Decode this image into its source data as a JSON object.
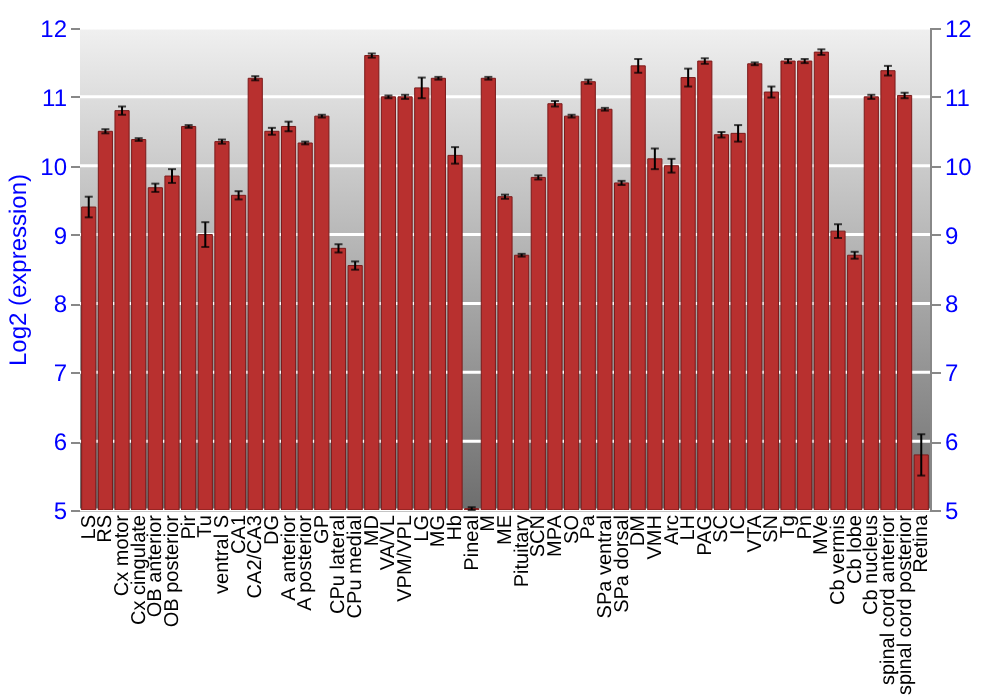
{
  "chart_data": {
    "type": "bar",
    "ylabel": "Log2 (expression)",
    "categories": [
      "LS",
      "RS",
      "Cx motor",
      "Cx cingulate",
      "OB anterior",
      "OB posterior",
      "Pir",
      "Tu",
      "ventral S",
      "CA1",
      "CA2/CA3",
      "DG",
      "A anterior",
      "A posterior",
      "GP",
      "CPu lateral",
      "CPu medial",
      "MD",
      "VA/VL",
      "VPM/VPL",
      "LG",
      "MG",
      "Hb",
      "Pineal",
      "M",
      "ME",
      "Pituitary",
      "SCN",
      "MPA",
      "SO",
      "Pa",
      "SPa ventral",
      "SPa dorsal",
      "DM",
      "VMH",
      "Arc",
      "LH",
      "PAG",
      "SC",
      "IC",
      "VTA",
      "SN",
      "Tg",
      "Pn",
      "MVe",
      "Cb vermis",
      "Cb lobe",
      "Cb nucleus",
      "spinal cord anterior",
      "spinal cord posterior",
      "Retina"
    ],
    "values": [
      9.4,
      10.5,
      10.8,
      10.38,
      9.68,
      9.85,
      10.57,
      9.0,
      10.35,
      9.57,
      11.27,
      10.5,
      10.57,
      10.33,
      10.72,
      8.8,
      8.55,
      11.6,
      11.0,
      11.0,
      11.13,
      11.27,
      10.15,
      5.02,
      11.27,
      9.55,
      8.7,
      9.83,
      10.9,
      10.72,
      11.22,
      10.82,
      9.75,
      11.45,
      10.1,
      10.0,
      11.28,
      11.52,
      10.45,
      10.47,
      11.48,
      11.07,
      11.52,
      11.52,
      11.65,
      9.05,
      8.7,
      11.0,
      11.38,
      11.02,
      5.8
    ],
    "errors": [
      0.15,
      0.03,
      0.06,
      0.02,
      0.06,
      0.1,
      0.02,
      0.18,
      0.03,
      0.06,
      0.03,
      0.05,
      0.07,
      0.02,
      0.02,
      0.06,
      0.06,
      0.03,
      0.02,
      0.03,
      0.15,
      0.02,
      0.12,
      0.02,
      0.02,
      0.03,
      0.02,
      0.03,
      0.04,
      0.02,
      0.03,
      0.02,
      0.03,
      0.1,
      0.15,
      0.1,
      0.13,
      0.04,
      0.04,
      0.12,
      0.02,
      0.08,
      0.03,
      0.03,
      0.04,
      0.1,
      0.05,
      0.03,
      0.07,
      0.04,
      0.3
    ],
    "color": "#b8302f",
    "ylim": [
      5,
      12
    ],
    "yticks": [
      5,
      6,
      7,
      8,
      9,
      10,
      11,
      12
    ],
    "y2lim": [
      5,
      12
    ],
    "y2ticks": [
      5,
      6,
      7,
      8,
      9,
      10,
      11,
      12
    ],
    "grid": "y"
  }
}
